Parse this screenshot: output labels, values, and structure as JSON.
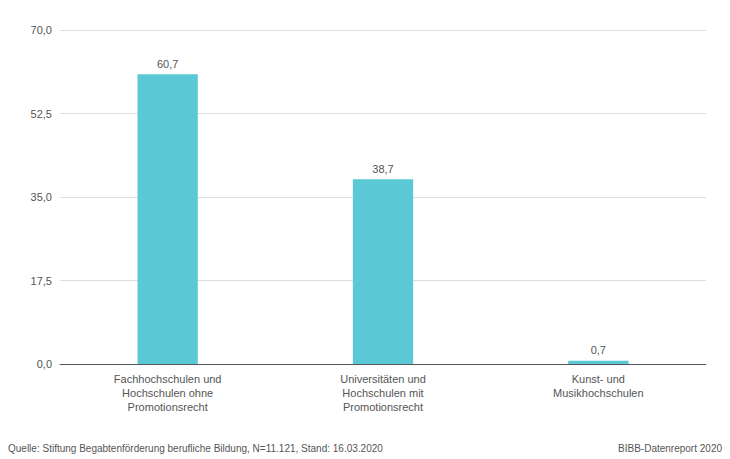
{
  "chart_data": {
    "type": "bar",
    "categories": [
      "Fachhochschulen und\nHochschulen ohne\nPromotionsrecht",
      "Universitäten und\nHochschulen mit\nPromotionsrecht",
      "Kunst- und\nMusikhochschulen"
    ],
    "values": [
      60.7,
      38.7,
      0.7
    ],
    "value_labels": [
      "60,7",
      "38,7",
      "0,7"
    ],
    "data_labels": true,
    "color": "#5bc8d5",
    "ylim": [
      0,
      70
    ],
    "yticks": [
      {
        "value": 0.0,
        "label": "0,0"
      },
      {
        "value": 17.5,
        "label": "17,5"
      },
      {
        "value": 35.0,
        "label": "35,0"
      },
      {
        "value": 52.5,
        "label": "52,5"
      },
      {
        "value": 70.0,
        "label": "70,0"
      }
    ],
    "grid": true,
    "annotations": [
      "Quelle: Stiftung Begabtenförderung berufliche Bildung, N=11.121, Stand: 16.03.2020",
      "BIBB-Datenreport 2020"
    ]
  }
}
